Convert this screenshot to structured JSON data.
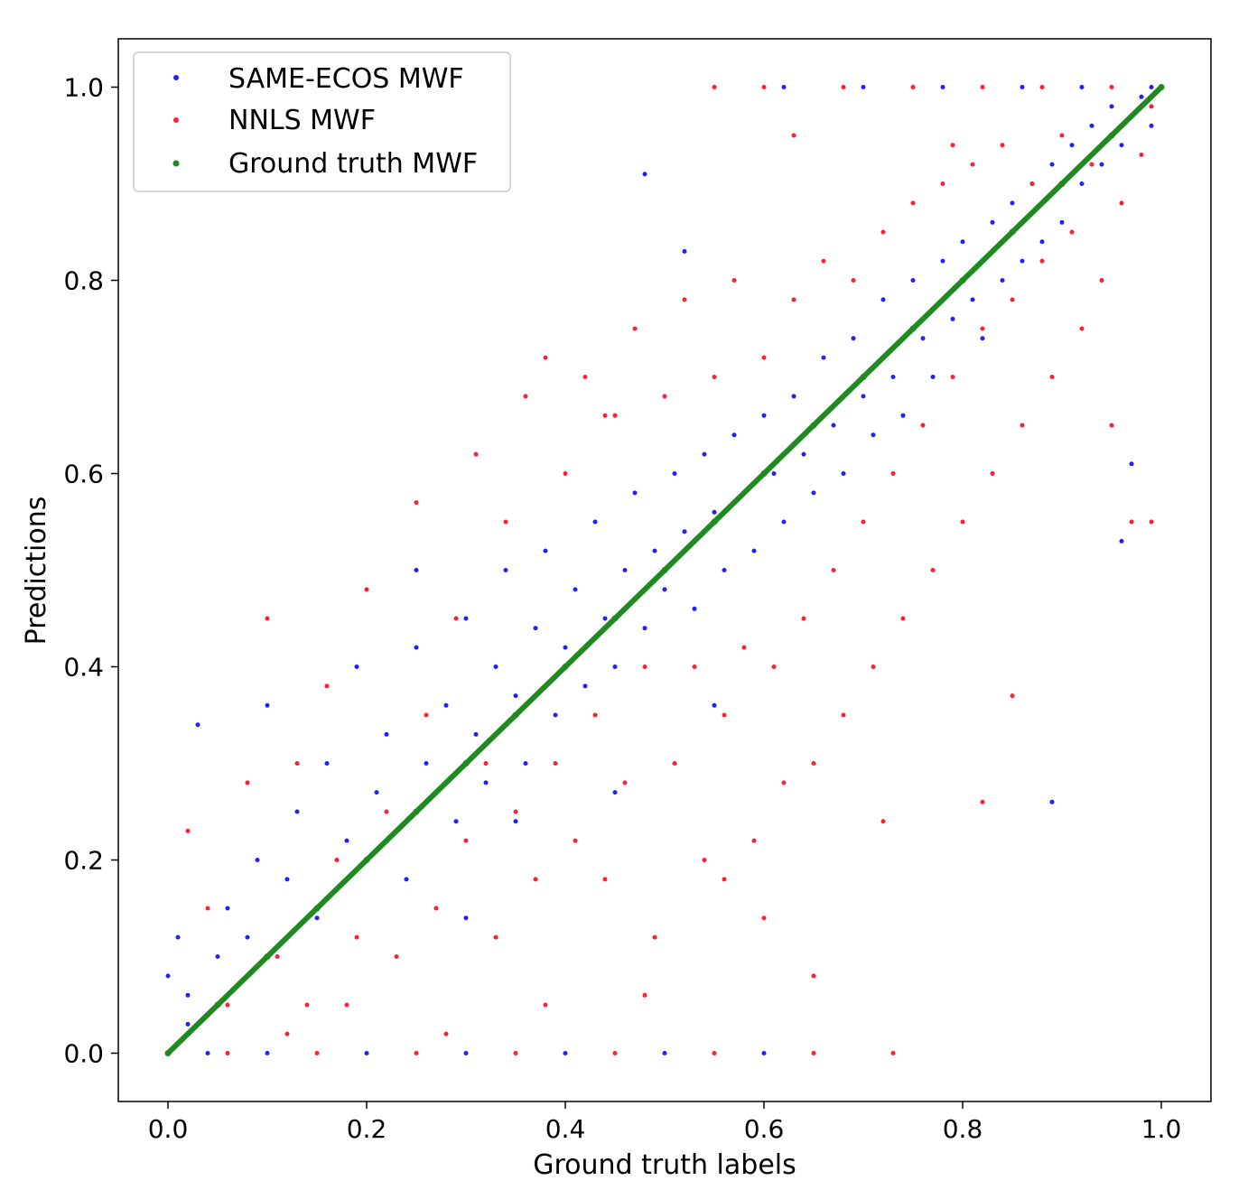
{
  "chart_data": {
    "type": "scatter",
    "title": "",
    "xlabel": "Ground truth labels",
    "ylabel": "Predictions",
    "xlim": [
      -0.05,
      1.05
    ],
    "ylim": [
      -0.05,
      1.05
    ],
    "xticks": [
      "0.0",
      "0.2",
      "0.4",
      "0.6",
      "0.8",
      "1.0"
    ],
    "yticks": [
      "0.0",
      "0.2",
      "0.4",
      "0.6",
      "0.8",
      "1.0"
    ],
    "grid": false,
    "legend_position": "top-left",
    "series": [
      {
        "name": "SAME-ECOS MWF",
        "color": "#1f1fff",
        "points": [
          [
            0.02,
            0.06
          ],
          [
            0.03,
            0.34
          ],
          [
            0.05,
            0.1
          ],
          [
            0.06,
            0.15
          ],
          [
            0.08,
            0.12
          ],
          [
            0.09,
            0.2
          ],
          [
            0.1,
            0.36
          ],
          [
            0.12,
            0.18
          ],
          [
            0.13,
            0.25
          ],
          [
            0.15,
            0.14
          ],
          [
            0.16,
            0.3
          ],
          [
            0.18,
            0.22
          ],
          [
            0.19,
            0.4
          ],
          [
            0.21,
            0.27
          ],
          [
            0.22,
            0.33
          ],
          [
            0.24,
            0.18
          ],
          [
            0.25,
            0.42
          ],
          [
            0.26,
            0.3
          ],
          [
            0.28,
            0.36
          ],
          [
            0.29,
            0.24
          ],
          [
            0.3,
            0.45
          ],
          [
            0.31,
            0.33
          ],
          [
            0.32,
            0.28
          ],
          [
            0.33,
            0.4
          ],
          [
            0.34,
            0.5
          ],
          [
            0.35,
            0.37
          ],
          [
            0.36,
            0.3
          ],
          [
            0.37,
            0.44
          ],
          [
            0.38,
            0.52
          ],
          [
            0.39,
            0.35
          ],
          [
            0.4,
            0.42
          ],
          [
            0.41,
            0.48
          ],
          [
            0.42,
            0.38
          ],
          [
            0.43,
            0.55
          ],
          [
            0.44,
            0.45
          ],
          [
            0.45,
            0.4
          ],
          [
            0.46,
            0.5
          ],
          [
            0.47,
            0.58
          ],
          [
            0.48,
            0.44
          ],
          [
            0.49,
            0.52
          ],
          [
            0.5,
            0.48
          ],
          [
            0.51,
            0.6
          ],
          [
            0.52,
            0.54
          ],
          [
            0.53,
            0.46
          ],
          [
            0.54,
            0.62
          ],
          [
            0.55,
            0.56
          ],
          [
            0.56,
            0.5
          ],
          [
            0.57,
            0.64
          ],
          [
            0.58,
            0.58
          ],
          [
            0.59,
            0.52
          ],
          [
            0.6,
            0.66
          ],
          [
            0.61,
            0.6
          ],
          [
            0.62,
            0.55
          ],
          [
            0.63,
            0.68
          ],
          [
            0.64,
            0.62
          ],
          [
            0.65,
            0.58
          ],
          [
            0.66,
            0.72
          ],
          [
            0.67,
            0.65
          ],
          [
            0.68,
            0.6
          ],
          [
            0.69,
            0.74
          ],
          [
            0.7,
            0.68
          ],
          [
            0.71,
            0.64
          ],
          [
            0.72,
            0.78
          ],
          [
            0.73,
            0.7
          ],
          [
            0.74,
            0.66
          ],
          [
            0.75,
            0.8
          ],
          [
            0.76,
            0.74
          ],
          [
            0.77,
            0.7
          ],
          [
            0.78,
            0.82
          ],
          [
            0.79,
            0.76
          ],
          [
            0.8,
            0.84
          ],
          [
            0.81,
            0.78
          ],
          [
            0.82,
            0.74
          ],
          [
            0.83,
            0.86
          ],
          [
            0.84,
            0.8
          ],
          [
            0.85,
            0.88
          ],
          [
            0.86,
            0.82
          ],
          [
            0.87,
            0.9
          ],
          [
            0.88,
            0.84
          ],
          [
            0.89,
            0.92
          ],
          [
            0.9,
            0.86
          ],
          [
            0.91,
            0.94
          ],
          [
            0.92,
            0.9
          ],
          [
            0.93,
            0.96
          ],
          [
            0.94,
            0.92
          ],
          [
            0.95,
            0.98
          ],
          [
            0.96,
            0.94
          ],
          [
            0.97,
            0.97
          ],
          [
            0.98,
            0.99
          ],
          [
            0.99,
            0.96
          ],
          [
            0.48,
            0.91
          ],
          [
            0.52,
            0.83
          ],
          [
            0.89,
            0.26
          ],
          [
            0.97,
            0.61
          ],
          [
            0.96,
            0.53
          ],
          [
            0.25,
            0.5
          ],
          [
            0.35,
            0.24
          ],
          [
            0.3,
            0.14
          ],
          [
            0.45,
            0.27
          ],
          [
            0.55,
            0.36
          ],
          [
            0.01,
            0.12
          ],
          [
            0.02,
            0.03
          ],
          [
            0.0,
            0.08
          ],
          [
            0.04,
            0.0
          ],
          [
            0.1,
            0.0
          ],
          [
            0.2,
            0.0
          ],
          [
            0.3,
            0.0
          ],
          [
            0.4,
            0.0
          ],
          [
            0.5,
            0.0
          ],
          [
            0.6,
            0.0
          ],
          [
            0.62,
            1.0
          ],
          [
            0.7,
            1.0
          ],
          [
            0.78,
            1.0
          ],
          [
            0.86,
            1.0
          ],
          [
            0.92,
            1.0
          ],
          [
            0.99,
            1.0
          ]
        ]
      },
      {
        "name": "NNLS MWF",
        "color": "#ff1f2f",
        "points": [
          [
            0.02,
            0.23
          ],
          [
            0.04,
            0.15
          ],
          [
            0.06,
            0.05
          ],
          [
            0.08,
            0.28
          ],
          [
            0.1,
            0.45
          ],
          [
            0.11,
            0.1
          ],
          [
            0.13,
            0.3
          ],
          [
            0.14,
            0.05
          ],
          [
            0.16,
            0.38
          ],
          [
            0.17,
            0.2
          ],
          [
            0.19,
            0.12
          ],
          [
            0.2,
            0.48
          ],
          [
            0.22,
            0.25
          ],
          [
            0.23,
            0.1
          ],
          [
            0.25,
            0.57
          ],
          [
            0.26,
            0.35
          ],
          [
            0.27,
            0.15
          ],
          [
            0.29,
            0.45
          ],
          [
            0.3,
            0.22
          ],
          [
            0.31,
            0.62
          ],
          [
            0.32,
            0.3
          ],
          [
            0.33,
            0.12
          ],
          [
            0.34,
            0.55
          ],
          [
            0.35,
            0.25
          ],
          [
            0.36,
            0.68
          ],
          [
            0.37,
            0.18
          ],
          [
            0.38,
            0.72
          ],
          [
            0.39,
            0.3
          ],
          [
            0.4,
            0.6
          ],
          [
            0.41,
            0.22
          ],
          [
            0.42,
            0.7
          ],
          [
            0.43,
            0.35
          ],
          [
            0.44,
            0.18
          ],
          [
            0.45,
            0.66
          ],
          [
            0.46,
            0.28
          ],
          [
            0.47,
            0.75
          ],
          [
            0.48,
            0.4
          ],
          [
            0.49,
            0.12
          ],
          [
            0.5,
            0.68
          ],
          [
            0.51,
            0.3
          ],
          [
            0.52,
            0.78
          ],
          [
            0.53,
            0.4
          ],
          [
            0.54,
            0.2
          ],
          [
            0.55,
            0.7
          ],
          [
            0.56,
            0.35
          ],
          [
            0.57,
            0.8
          ],
          [
            0.58,
            0.42
          ],
          [
            0.59,
            0.22
          ],
          [
            0.6,
            0.72
          ],
          [
            0.61,
            0.4
          ],
          [
            0.62,
            0.28
          ],
          [
            0.63,
            0.78
          ],
          [
            0.64,
            0.45
          ],
          [
            0.65,
            0.3
          ],
          [
            0.66,
            0.82
          ],
          [
            0.67,
            0.5
          ],
          [
            0.68,
            0.35
          ],
          [
            0.69,
            0.8
          ],
          [
            0.7,
            0.55
          ],
          [
            0.71,
            0.4
          ],
          [
            0.72,
            0.85
          ],
          [
            0.73,
            0.6
          ],
          [
            0.74,
            0.45
          ],
          [
            0.75,
            0.88
          ],
          [
            0.76,
            0.65
          ],
          [
            0.77,
            0.5
          ],
          [
            0.78,
            0.9
          ],
          [
            0.79,
            0.7
          ],
          [
            0.8,
            0.55
          ],
          [
            0.81,
            0.92
          ],
          [
            0.82,
            0.75
          ],
          [
            0.83,
            0.6
          ],
          [
            0.84,
            0.94
          ],
          [
            0.85,
            0.78
          ],
          [
            0.86,
            0.65
          ],
          [
            0.87,
            0.9
          ],
          [
            0.88,
            0.82
          ],
          [
            0.89,
            0.7
          ],
          [
            0.9,
            0.95
          ],
          [
            0.91,
            0.85
          ],
          [
            0.92,
            0.75
          ],
          [
            0.93,
            0.92
          ],
          [
            0.94,
            0.8
          ],
          [
            0.95,
            0.65
          ],
          [
            0.96,
            0.88
          ],
          [
            0.97,
            0.55
          ],
          [
            0.98,
            0.93
          ],
          [
            0.99,
            0.55
          ],
          [
            0.82,
            0.26
          ],
          [
            0.85,
            0.37
          ],
          [
            0.72,
            0.24
          ],
          [
            0.6,
            0.14
          ],
          [
            0.48,
            0.06
          ],
          [
            0.65,
            0.08
          ],
          [
            0.56,
            0.18
          ],
          [
            0.38,
            0.05
          ],
          [
            0.28,
            0.02
          ],
          [
            0.18,
            0.05
          ],
          [
            0.12,
            0.02
          ],
          [
            0.06,
            0.0
          ],
          [
            0.15,
            0.0
          ],
          [
            0.25,
            0.0
          ],
          [
            0.35,
            0.0
          ],
          [
            0.45,
            0.0
          ],
          [
            0.55,
            0.0
          ],
          [
            0.65,
            0.0
          ],
          [
            0.73,
            0.0
          ],
          [
            0.55,
            1.0
          ],
          [
            0.6,
            1.0
          ],
          [
            0.68,
            1.0
          ],
          [
            0.75,
            1.0
          ],
          [
            0.82,
            1.0
          ],
          [
            0.88,
            1.0
          ],
          [
            0.95,
            1.0
          ],
          [
            0.99,
            0.98
          ],
          [
            0.79,
            0.94
          ],
          [
            0.63,
            0.95
          ],
          [
            0.44,
            0.66
          ]
        ]
      },
      {
        "name": "Ground truth MWF",
        "color": "#1f8a1f",
        "points": [
          [
            0.0,
            0.0
          ],
          [
            0.05,
            0.05
          ],
          [
            0.1,
            0.1
          ],
          [
            0.15,
            0.15
          ],
          [
            0.2,
            0.2
          ],
          [
            0.25,
            0.25
          ],
          [
            0.3,
            0.3
          ],
          [
            0.35,
            0.35
          ],
          [
            0.4,
            0.4
          ],
          [
            0.45,
            0.45
          ],
          [
            0.5,
            0.5
          ],
          [
            0.55,
            0.55
          ],
          [
            0.6,
            0.6
          ],
          [
            0.65,
            0.65
          ],
          [
            0.7,
            0.7
          ],
          [
            0.75,
            0.75
          ],
          [
            0.8,
            0.8
          ],
          [
            0.85,
            0.85
          ],
          [
            0.9,
            0.9
          ],
          [
            0.95,
            0.95
          ],
          [
            1.0,
            1.0
          ]
        ]
      }
    ]
  }
}
